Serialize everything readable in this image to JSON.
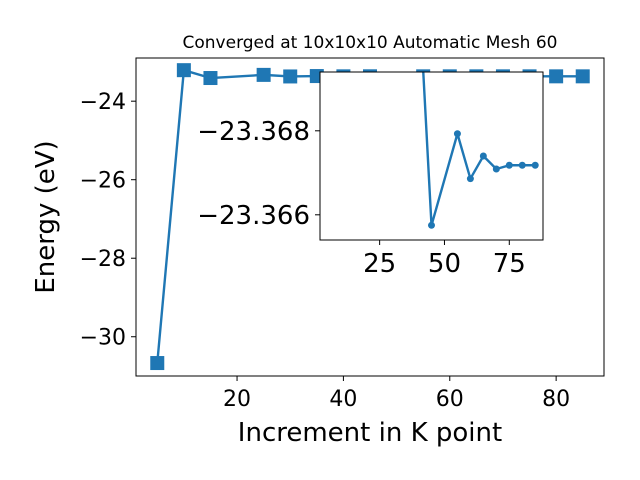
{
  "chart_data": [
    {
      "type": "line",
      "title": "Converged at 10x10x10 Automatic Mesh 60",
      "xlabel": "Increment in K point",
      "ylabel": "Energy (eV)",
      "xlim": [
        1,
        89
      ],
      "ylim": [
        -31.0,
        -22.9
      ],
      "xticks": [
        20,
        40,
        60,
        80
      ],
      "yticks": [
        -24,
        -26,
        -28,
        -30
      ],
      "xtick_labels": [
        "20",
        "40",
        "60",
        "80"
      ],
      "ytick_labels": [
        "−24",
        "−26",
        "−28",
        "−30"
      ],
      "color": "#1f77b4",
      "marker": "square",
      "grid": false,
      "x": [
        5,
        10,
        15,
        25,
        30,
        35,
        40,
        45,
        55,
        60,
        65,
        70,
        75,
        80,
        85
      ],
      "y": [
        -30.67,
        -23.21,
        -23.41,
        -23.33,
        -23.37,
        -23.36,
        -23.367,
        -23.366,
        -23.367,
        -23.367,
        -23.367,
        -23.367,
        -23.367,
        -23.367,
        -23.367
      ]
    },
    {
      "type": "line",
      "title": "",
      "xlabel": "",
      "ylabel": "",
      "xlim": [
        2,
        88
      ],
      "ylim": [
        -23.3654,
        -23.3694
      ],
      "xticks": [
        25,
        50,
        75
      ],
      "yticks": [
        -23.368,
        -23.366
      ],
      "xtick_labels": [
        "25",
        "50",
        "75"
      ],
      "ytick_labels": [
        "−23.368",
        "−23.366"
      ],
      "color": "#1f77b4",
      "marker": "circle",
      "grid": false,
      "x": [
        40,
        45,
        55,
        60,
        65,
        70,
        75,
        80,
        85
      ],
      "y": [
        -23.3715,
        -23.36575,
        -23.36793,
        -23.36686,
        -23.3674,
        -23.36709,
        -23.36718,
        -23.36718,
        -23.36718
      ]
    }
  ]
}
